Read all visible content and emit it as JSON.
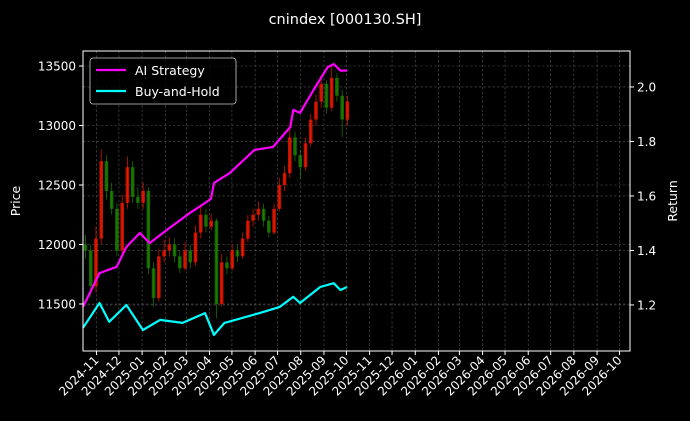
{
  "chart_data": {
    "type": "line",
    "title": "cnindex [000130.SH]",
    "xlabel": "",
    "ylabel_left": "Price",
    "ylabel_right": "Return",
    "xlim": [
      "2024-10-14",
      "2026-10-15"
    ],
    "ylim_left": [
      11105,
      13626
    ],
    "ylim_right": [
      1.031,
      2.132
    ],
    "grid": true,
    "legend_placement": "top-left",
    "colors": {
      "ai": "#ff00ff",
      "bh": "#00ffff",
      "up": "#ff1a00",
      "down": "#1f8a00",
      "axis": "#ffffff",
      "background": "#000000"
    },
    "x_ticks": [
      "2024-11",
      "2024-12",
      "2025-01",
      "2025-02",
      "2025-03",
      "2025-04",
      "2025-05",
      "2025-06",
      "2025-07",
      "2025-08",
      "2025-09",
      "2025-10",
      "2025-11",
      "2025-12",
      "2026-01",
      "2026-02",
      "2026-03",
      "2026-04",
      "2026-05",
      "2026-06",
      "2026-07",
      "2026-08",
      "2026-09",
      "2026-10"
    ],
    "y_ticks_left": [
      "11500",
      "12000",
      "12500",
      "13000",
      "13500"
    ],
    "y_ticks_right": [
      "1.2",
      "1.4",
      "1.6",
      "1.8",
      "2.0"
    ],
    "series": [
      {
        "name": "AI Strategy",
        "axis": "right",
        "points": [
          [
            "2024-10-14",
            1.193
          ],
          [
            "2024-11-05",
            1.317
          ],
          [
            "2024-11-28",
            1.34
          ],
          [
            "2024-12-11",
            1.413
          ],
          [
            "2024-12-29",
            1.464
          ],
          [
            "2025-01-11",
            1.427
          ],
          [
            "2025-02-03",
            1.475
          ],
          [
            "2025-03-06",
            1.538
          ],
          [
            "2025-03-26",
            1.574
          ],
          [
            "2025-04-03",
            1.59
          ],
          [
            "2025-04-07",
            1.648
          ],
          [
            "2025-04-28",
            1.684
          ],
          [
            "2025-05-31",
            1.769
          ],
          [
            "2025-06-25",
            1.78
          ],
          [
            "2025-07-18",
            1.853
          ],
          [
            "2025-07-22",
            1.916
          ],
          [
            "2025-07-31",
            1.905
          ],
          [
            "2025-08-18",
            1.989
          ],
          [
            "2025-09-06",
            2.073
          ],
          [
            "2025-09-14",
            2.084
          ],
          [
            "2025-09-23",
            2.06
          ],
          [
            "2025-10-02",
            2.06
          ]
        ]
      },
      {
        "name": "Buy-and-Hold",
        "axis": "right",
        "points": [
          [
            "2024-10-14",
            1.116
          ],
          [
            "2024-11-05",
            1.207
          ],
          [
            "2024-11-18",
            1.138
          ],
          [
            "2024-12-11",
            1.2
          ],
          [
            "2025-01-02",
            1.108
          ],
          [
            "2025-01-25",
            1.145
          ],
          [
            "2025-02-24",
            1.134
          ],
          [
            "2025-03-26",
            1.17
          ],
          [
            "2025-04-07",
            1.09
          ],
          [
            "2025-04-21",
            1.134
          ],
          [
            "2025-06-07",
            1.17
          ],
          [
            "2025-07-04",
            1.193
          ],
          [
            "2025-07-22",
            1.23
          ],
          [
            "2025-07-31",
            1.207
          ],
          [
            "2025-08-27",
            1.266
          ],
          [
            "2025-09-14",
            1.28
          ],
          [
            "2025-09-23",
            1.255
          ],
          [
            "2025-10-02",
            1.266
          ]
        ]
      }
    ],
    "candles_weekly_ohlc": [
      [
        "2024-10-14",
        12000,
        12080,
        11880,
        11950
      ],
      [
        "2024-10-21",
        11950,
        12000,
        11560,
        11650
      ],
      [
        "2024-10-28",
        11650,
        12150,
        11600,
        12050
      ],
      [
        "2024-11-04",
        12050,
        12800,
        12000,
        12700
      ],
      [
        "2024-11-11",
        12700,
        12750,
        12380,
        12450
      ],
      [
        "2024-11-18",
        12450,
        12520,
        12250,
        12300
      ],
      [
        "2024-11-25",
        12300,
        12350,
        11900,
        11950
      ],
      [
        "2024-12-02",
        11950,
        12420,
        11900,
        12350
      ],
      [
        "2024-12-09",
        12350,
        12740,
        12300,
        12650
      ],
      [
        "2024-12-16",
        12650,
        12700,
        12350,
        12400
      ],
      [
        "2024-12-23",
        12400,
        12480,
        12300,
        12350
      ],
      [
        "2024-12-30",
        12350,
        12520,
        12300,
        12450
      ],
      [
        "2025-01-06",
        12450,
        12480,
        11750,
        11800
      ],
      [
        "2025-01-13",
        11800,
        11850,
        11480,
        11550
      ],
      [
        "2025-01-20",
        11550,
        11960,
        11520,
        11900
      ],
      [
        "2025-01-27",
        11900,
        12040,
        11850,
        11950
      ],
      [
        "2025-02-03",
        11950,
        12060,
        11900,
        12000
      ],
      [
        "2025-02-10",
        12000,
        12050,
        11850,
        11900
      ],
      [
        "2025-02-17",
        11900,
        11950,
        11760,
        11800
      ],
      [
        "2025-02-24",
        11800,
        12020,
        11780,
        11950
      ],
      [
        "2025-03-03",
        11950,
        12000,
        11800,
        11850
      ],
      [
        "2025-03-10",
        11850,
        12160,
        11820,
        12100
      ],
      [
        "2025-03-17",
        12100,
        12320,
        12050,
        12250
      ],
      [
        "2025-03-24",
        12250,
        12300,
        12100,
        12150
      ],
      [
        "2025-03-31",
        12150,
        12260,
        12120,
        12200
      ],
      [
        "2025-04-07",
        12200,
        12220,
        11380,
        11500
      ],
      [
        "2025-04-14",
        11500,
        11920,
        11480,
        11850
      ],
      [
        "2025-04-21",
        11850,
        11900,
        11750,
        11800
      ],
      [
        "2025-04-28",
        11800,
        12000,
        11780,
        11950
      ],
      [
        "2025-05-05",
        11950,
        12000,
        11850,
        11900
      ],
      [
        "2025-05-12",
        11900,
        12100,
        11880,
        12050
      ],
      [
        "2025-05-19",
        12050,
        12250,
        12020,
        12200
      ],
      [
        "2025-05-26",
        12200,
        12300,
        12150,
        12250
      ],
      [
        "2025-06-02",
        12250,
        12360,
        12200,
        12300
      ],
      [
        "2025-06-09",
        12300,
        12340,
        12150,
        12200
      ],
      [
        "2025-06-16",
        12200,
        12240,
        12060,
        12100
      ],
      [
        "2025-06-23",
        12100,
        12340,
        12080,
        12300
      ],
      [
        "2025-06-30",
        12300,
        12560,
        12280,
        12500
      ],
      [
        "2025-07-07",
        12500,
        12660,
        12450,
        12600
      ],
      [
        "2025-07-14",
        12600,
        13020,
        12560,
        12900
      ],
      [
        "2025-07-21",
        12900,
        12950,
        12700,
        12750
      ],
      [
        "2025-07-28",
        12750,
        12800,
        12550,
        12650
      ],
      [
        "2025-08-04",
        12650,
        12900,
        12620,
        12850
      ],
      [
        "2025-08-11",
        12850,
        13100,
        12820,
        13050
      ],
      [
        "2025-08-18",
        13050,
        13260,
        13000,
        13200
      ],
      [
        "2025-08-25",
        13200,
        13420,
        13150,
        13350
      ],
      [
        "2025-09-01",
        13350,
        13380,
        13100,
        13150
      ],
      [
        "2025-09-08",
        13150,
        13500,
        13120,
        13400
      ],
      [
        "2025-09-15",
        13400,
        13440,
        13200,
        13250
      ],
      [
        "2025-09-22",
        13250,
        13300,
        12900,
        13050
      ],
      [
        "2025-09-29",
        13050,
        13250,
        13000,
        13200
      ]
    ]
  }
}
